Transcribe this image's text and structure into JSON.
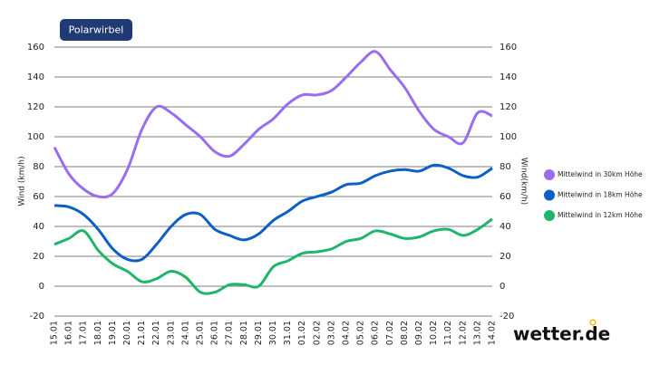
{
  "chart_data": {
    "type": "line",
    "title": "Polarwirbel",
    "y_label": "Wind (km/h)",
    "y2_label": "Wind(km/h)",
    "categories": [
      "15.01",
      "16.01",
      "17.01",
      "18.01",
      "19.01",
      "20.01",
      "21.01",
      "22.01",
      "23.01",
      "24.01",
      "25.01",
      "26.01",
      "27.01",
      "28.01",
      "29.01",
      "30.01",
      "31.01",
      "01.02",
      "02.02",
      "03.02",
      "04.02",
      "05.02",
      "06.02",
      "07.02",
      "08.02",
      "09.02",
      "10.02",
      "11.02",
      "12.02",
      "13.02",
      "14.02"
    ],
    "series": [
      {
        "name": "Mittelwind in 30km Höhe",
        "color": "#9a6df0",
        "values": [
          93,
          75,
          65,
          60,
          62,
          78,
          105,
          120,
          116,
          108,
          100,
          90,
          87,
          95,
          105,
          112,
          122,
          128,
          128,
          131,
          140,
          150,
          157,
          145,
          133,
          117,
          105,
          100,
          96,
          116,
          114
        ]
      },
      {
        "name": "Mittelwind in 18km Höhe",
        "color": "#0b5fc6",
        "values": [
          54,
          53,
          48,
          38,
          25,
          18,
          18,
          28,
          40,
          48,
          48,
          38,
          34,
          31,
          35,
          44,
          50,
          57,
          60,
          63,
          68,
          69,
          74,
          77,
          78,
          77,
          81,
          79,
          74,
          73,
          79
        ]
      },
      {
        "name": "Mittelwind in 12km Höhe",
        "color": "#1db66a",
        "values": [
          28,
          32,
          37,
          24,
          15,
          10,
          3,
          5,
          10,
          6,
          -4,
          -4,
          1,
          1,
          0,
          13,
          17,
          22,
          23,
          25,
          30,
          32,
          37,
          35,
          32,
          33,
          37,
          38,
          34,
          38,
          45
        ]
      }
    ],
    "ylim": [
      -20,
      160
    ],
    "yticks": [
      -20,
      0,
      20,
      40,
      60,
      80,
      100,
      120,
      140,
      160
    ],
    "y2lim": [
      -20,
      160
    ],
    "y2ticks": [
      -20,
      0,
      20,
      40,
      60,
      80,
      100,
      120,
      140,
      160
    ],
    "grid": true,
    "legend": "right",
    "logo": "wetter.de"
  }
}
